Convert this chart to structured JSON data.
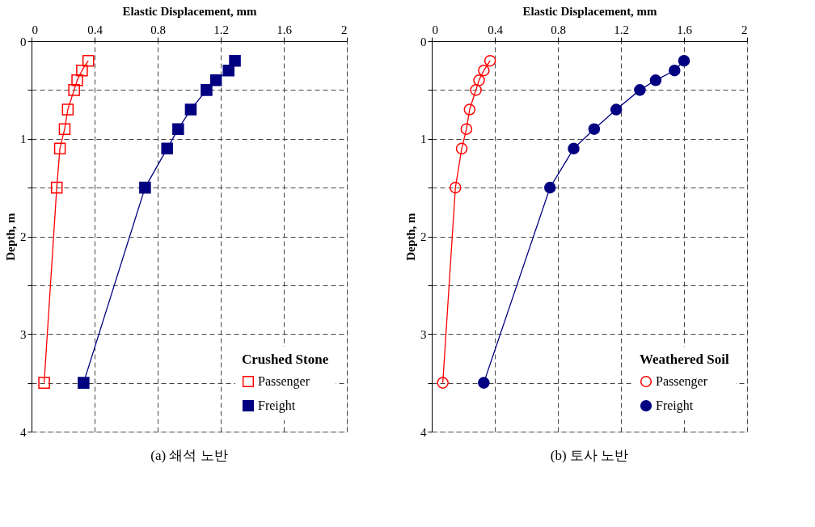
{
  "chart_data": [
    {
      "type": "line",
      "title": "(a) 쇄석 노반",
      "xlabel": "Elastic Displacement, mm",
      "ylabel": "Depth, m",
      "legend_title": "Crushed Stone",
      "xlim": [
        0,
        2
      ],
      "xticks": [
        0,
        0.4,
        0.8,
        1.2,
        1.6,
        2
      ],
      "ylim": [
        4,
        0
      ],
      "yticks": [
        0,
        {
          "value": 0.5,
          "label": null
        },
        1,
        {
          "value": 1.5,
          "label": null
        },
        2,
        {
          "value": 2.5,
          "label": null
        },
        3,
        {
          "value": 3.5,
          "label": null
        },
        4
      ],
      "grid": true,
      "legend": "bottom right",
      "marker": "square",
      "line_style": "solid",
      "series": [
        {
          "name": "Passenger",
          "color": "#ff0000",
          "x": [
            0.36,
            0.32,
            0.29,
            0.27,
            0.23,
            0.21,
            0.18,
            0.16,
            0.08
          ],
          "values": [
            0.2,
            0.3,
            0.4,
            0.5,
            0.7,
            0.9,
            1.1,
            1.5,
            3.5
          ]
        },
        {
          "name": "Freight",
          "color": "#000080",
          "x": [
            1.29,
            1.25,
            1.17,
            1.11,
            1.01,
            0.93,
            0.86,
            0.72,
            0.33
          ],
          "values": [
            0.2,
            0.3,
            0.4,
            0.5,
            0.7,
            0.9,
            1.1,
            1.5,
            3.5
          ]
        }
      ]
    },
    {
      "type": "line",
      "title": "(b) 토사 노반",
      "xlabel": "Elastic Displacement, mm",
      "ylabel": "Depth, m",
      "legend_title": "Weathered Soil",
      "xlim": [
        0,
        2
      ],
      "xticks": [
        0,
        0.4,
        0.8,
        1.2,
        1.6,
        2
      ],
      "ylim": [
        4,
        0
      ],
      "yticks": [
        0,
        {
          "value": 0.5,
          "label": null
        },
        1,
        {
          "value": 1.5,
          "label": null
        },
        2,
        {
          "value": 2.5,
          "label": null
        },
        3,
        {
          "value": 3.5,
          "label": null
        },
        4
      ],
      "grid": true,
      "legend": "bottom right",
      "marker": "circle",
      "line_style": "solid",
      "series": [
        {
          "name": "Passenger",
          "color": "#ff0000",
          "x": [
            0.37,
            0.33,
            0.3,
            0.28,
            0.24,
            0.22,
            0.19,
            0.15,
            0.07
          ],
          "values": [
            0.2,
            0.3,
            0.4,
            0.5,
            0.7,
            0.9,
            1.1,
            1.5,
            3.5
          ]
        },
        {
          "name": "Freight",
          "color": "#000080",
          "x": [
            1.6,
            1.54,
            1.42,
            1.32,
            1.17,
            1.03,
            0.9,
            0.75,
            0.33
          ],
          "values": [
            0.2,
            0.3,
            0.4,
            0.5,
            0.7,
            0.9,
            1.1,
            1.5,
            3.5
          ]
        }
      ]
    }
  ]
}
